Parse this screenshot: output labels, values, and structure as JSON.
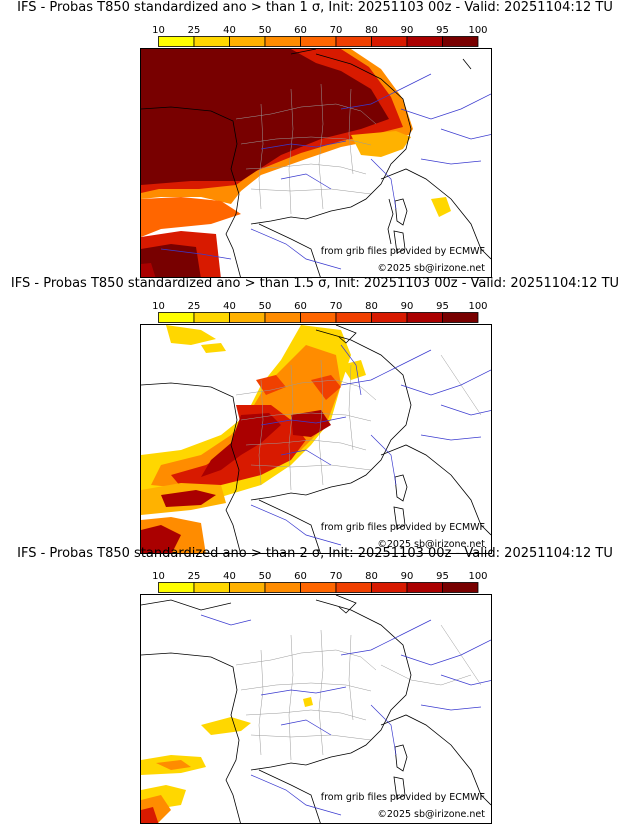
{
  "colorbar": {
    "ticks": [
      "10",
      "25",
      "40",
      "50",
      "60",
      "70",
      "80",
      "90",
      "95",
      "100"
    ],
    "colors": [
      "#ffff00",
      "#ffd700",
      "#ffb200",
      "#ff8c00",
      "#ff6600",
      "#f04000",
      "#d81a00",
      "#aa0000",
      "#780000"
    ]
  },
  "map_credits": {
    "source": "from grib files provided by ECMWF",
    "copyright": "©2025 sb@irizone.net"
  },
  "panels": [
    {
      "title": "IFS - Probas T850  standardized ano > than 1 σ, Init: 20251103 00z - Valid: 20251104:12 TU",
      "threshold": "1 σ"
    },
    {
      "title": "IFS - Probas T850  standardized ano > than 1.5 σ, Init: 20251103 00z - Valid: 20251104:12 TU",
      "threshold": "1.5 σ"
    },
    {
      "title": "IFS - Probas T850  standardized ano > than 2 σ, Init: 20251103 00z - Valid: 20251104:12 TU",
      "threshold": "2 σ"
    }
  ]
}
